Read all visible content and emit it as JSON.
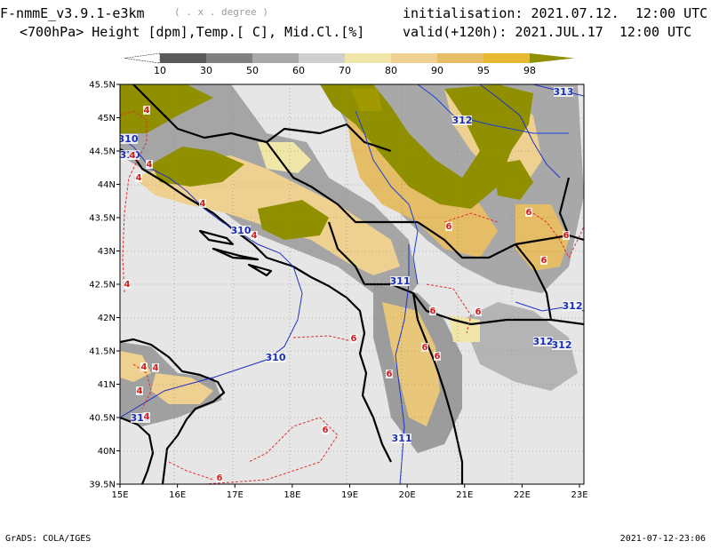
{
  "header": {
    "model_title": "F-nmmE_v3.9.1-e3km",
    "units_note": "( . x . degree )",
    "subtitle": "<700hPa> Height [dpm],Temp.[ C], Mid.Cl.[%]",
    "init_line": "initialisation: 2021.07.12.  12:00 UTC",
    "valid_line": "valid(+120h): 2021.JUL.17  12:00 UTC"
  },
  "colorbar": {
    "ticks": [
      "10",
      "30",
      "50",
      "60",
      "70",
      "80",
      "90",
      "95",
      "98"
    ],
    "colors": [
      "#ffffff",
      "#5a5a5a",
      "#808080",
      "#a8a8a8",
      "#cfcfcf",
      "#f0e6a8",
      "#eed190",
      "#e4bd66",
      "#e8b830",
      "#8f8f00"
    ]
  },
  "map": {
    "lat_labels": [
      "45.5N",
      "45N",
      "44.5N",
      "44N",
      "43.5N",
      "43N",
      "42.5N",
      "42N",
      "41.5N",
      "41N",
      "40.5N",
      "40N",
      "39.5N"
    ],
    "lon_labels": [
      "15E",
      "16E",
      "17E",
      "18E",
      "19E",
      "20E",
      "21E",
      "22E",
      "23E"
    ],
    "height_labels": [
      "313",
      "312",
      "310",
      "310",
      "310",
      "310",
      "310",
      "311",
      "311",
      "312",
      "312",
      "312"
    ],
    "temp_labels": [
      "4",
      "4",
      "4",
      "4",
      "4",
      "4",
      "4",
      "4",
      "4",
      "4",
      "4",
      "6",
      "6",
      "6",
      "6",
      "6",
      "6",
      "6",
      "6",
      "6",
      "6",
      "6",
      "6"
    ]
  },
  "footer": {
    "left": "GrADS: COLA/IGES",
    "right": "2021-07-12-23:06"
  }
}
